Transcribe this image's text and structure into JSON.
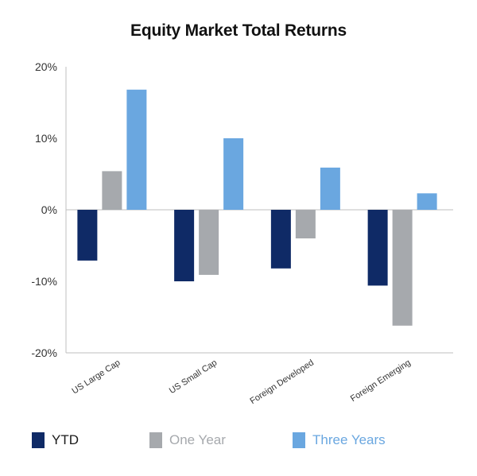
{
  "chart_data": {
    "type": "bar",
    "title": "Equity Market Total Returns",
    "categories": [
      "US Large Cap",
      "US Small Cap",
      "Foreign Developed",
      "Foreign Emerging"
    ],
    "series": [
      {
        "name": "YTD",
        "color": "#0f2a66",
        "values": [
          -7.1,
          -10.0,
          -8.2,
          -10.6
        ]
      },
      {
        "name": "One Year",
        "color": "#a6a9ad",
        "values": [
          5.4,
          -9.1,
          -4.0,
          -16.2
        ]
      },
      {
        "name": "Three Years",
        "color": "#6aa7e0",
        "values": [
          16.8,
          10.0,
          5.9,
          2.3
        ]
      }
    ],
    "ylim": [
      -20,
      20
    ],
    "yticks": [
      20,
      10,
      0,
      -10,
      -20
    ],
    "ytick_labels": [
      "20%",
      "10%",
      "0%",
      "-10%",
      "-20%"
    ],
    "grid": false,
    "legend": "bottom"
  },
  "colors": {
    "axis": "#bfbfbf",
    "text": "#333333"
  }
}
